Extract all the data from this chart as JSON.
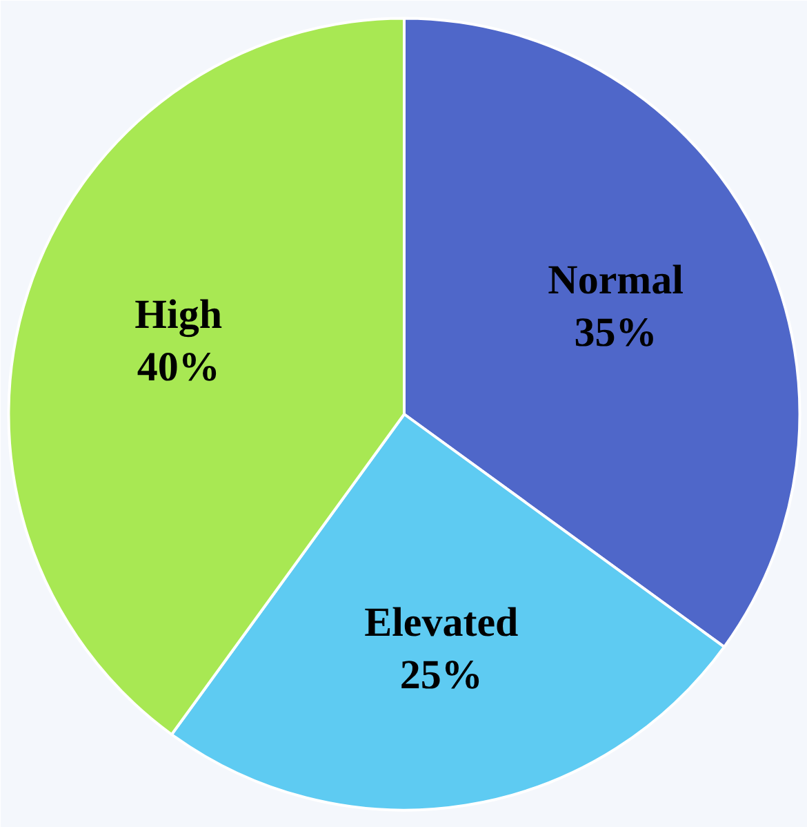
{
  "chart_data": {
    "type": "pie",
    "categories": [
      "Normal",
      "Elevated",
      "High"
    ],
    "values": [
      35,
      25,
      40
    ],
    "colors": [
      "#4f67c9",
      "#5ecbf2",
      "#a8e853"
    ],
    "value_labels": [
      "35%",
      "25%",
      "40%"
    ]
  }
}
